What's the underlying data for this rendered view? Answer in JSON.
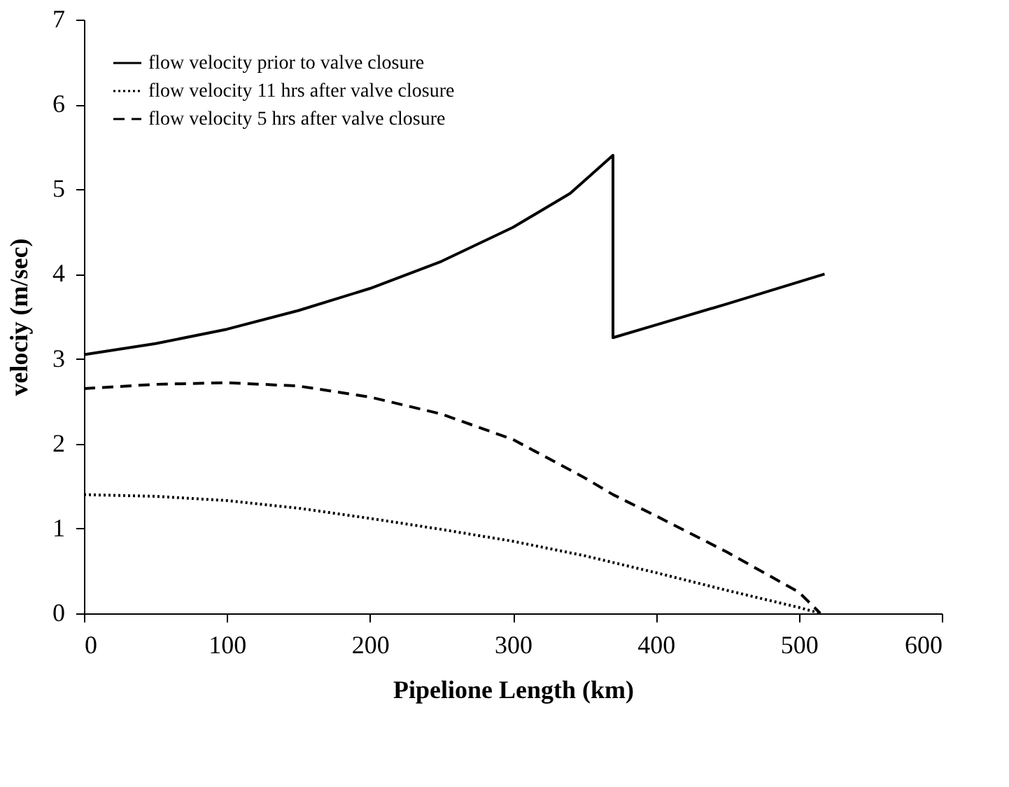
{
  "chart_data": {
    "type": "line",
    "xlabel": "Pipelione Length (km)",
    "ylabel": "velociy (m/sec)",
    "xlim": [
      0,
      600
    ],
    "xticks": [
      0,
      100,
      200,
      300,
      400,
      500,
      600
    ],
    "ylim": [
      0,
      7
    ],
    "yticks": [
      0,
      1,
      2,
      3,
      4,
      5,
      6,
      7
    ],
    "grid": false,
    "legend": "top left",
    "marker": "none",
    "series": [
      {
        "name": "flow velocity prior to valve closure",
        "color": "#000000",
        "line_style": "solid",
        "x": [
          0,
          50,
          100,
          150,
          200,
          250,
          300,
          340,
          370,
          370,
          400,
          450,
          518
        ],
        "values": [
          3.05,
          3.18,
          3.35,
          3.57,
          3.83,
          4.15,
          4.55,
          4.95,
          5.4,
          3.25,
          3.4,
          3.65,
          4.0
        ]
      },
      {
        "name": "flow velocity 11 hrs after valve closure",
        "color": "#000000",
        "line_style": "dotted",
        "x": [
          0,
          50,
          100,
          150,
          200,
          250,
          300,
          350,
          400,
          450,
          500,
          515
        ],
        "values": [
          1.4,
          1.38,
          1.33,
          1.24,
          1.12,
          0.99,
          0.85,
          0.68,
          0.48,
          0.27,
          0.07,
          0
        ]
      },
      {
        "name": "flow velocity 5 hrs after valve closure",
        "color": "#000000",
        "line_style": "dashed",
        "x": [
          0,
          50,
          100,
          150,
          200,
          250,
          300,
          350,
          370,
          400,
          450,
          500,
          515
        ],
        "values": [
          2.65,
          2.7,
          2.72,
          2.68,
          2.55,
          2.35,
          2.05,
          1.6,
          1.4,
          1.15,
          0.72,
          0.25,
          0
        ]
      }
    ]
  }
}
